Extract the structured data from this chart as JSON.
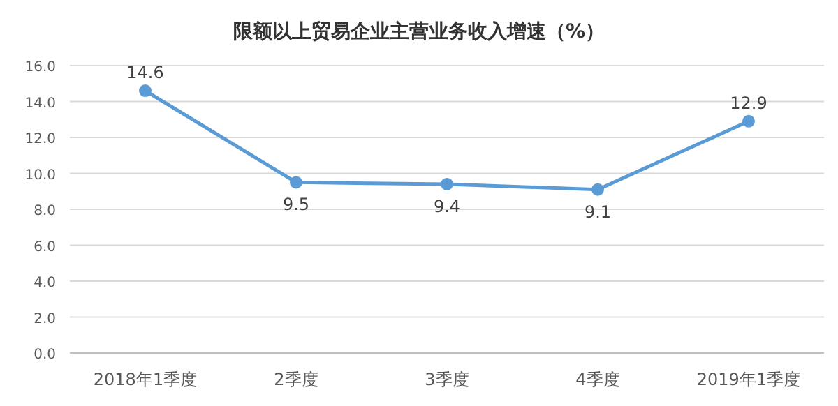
{
  "chart_data": {
    "type": "line",
    "title": "限额以上贸易企业主营业务收入增速（%）",
    "categories": [
      "2018年1季度",
      "2季度",
      "3季度",
      "4季度",
      "2019年1季度"
    ],
    "values": [
      14.6,
      9.5,
      9.4,
      9.1,
      12.9
    ],
    "color": "#5b9bd5",
    "marker": "circle",
    "data_labels": true,
    "grid": "y",
    "ylim": [
      0,
      16
    ],
    "yticks": [
      {
        "value": 0,
        "label": "0.0"
      },
      {
        "value": 2,
        "label": "2.0"
      },
      {
        "value": 4,
        "label": "4.0"
      },
      {
        "value": 6,
        "label": "6.0"
      },
      {
        "value": 8,
        "label": "8.0"
      },
      {
        "value": 10,
        "label": "10.0"
      },
      {
        "value": 12,
        "label": "12.0"
      },
      {
        "value": 14,
        "label": "14.0"
      },
      {
        "value": 16,
        "label": "16.0"
      }
    ]
  }
}
